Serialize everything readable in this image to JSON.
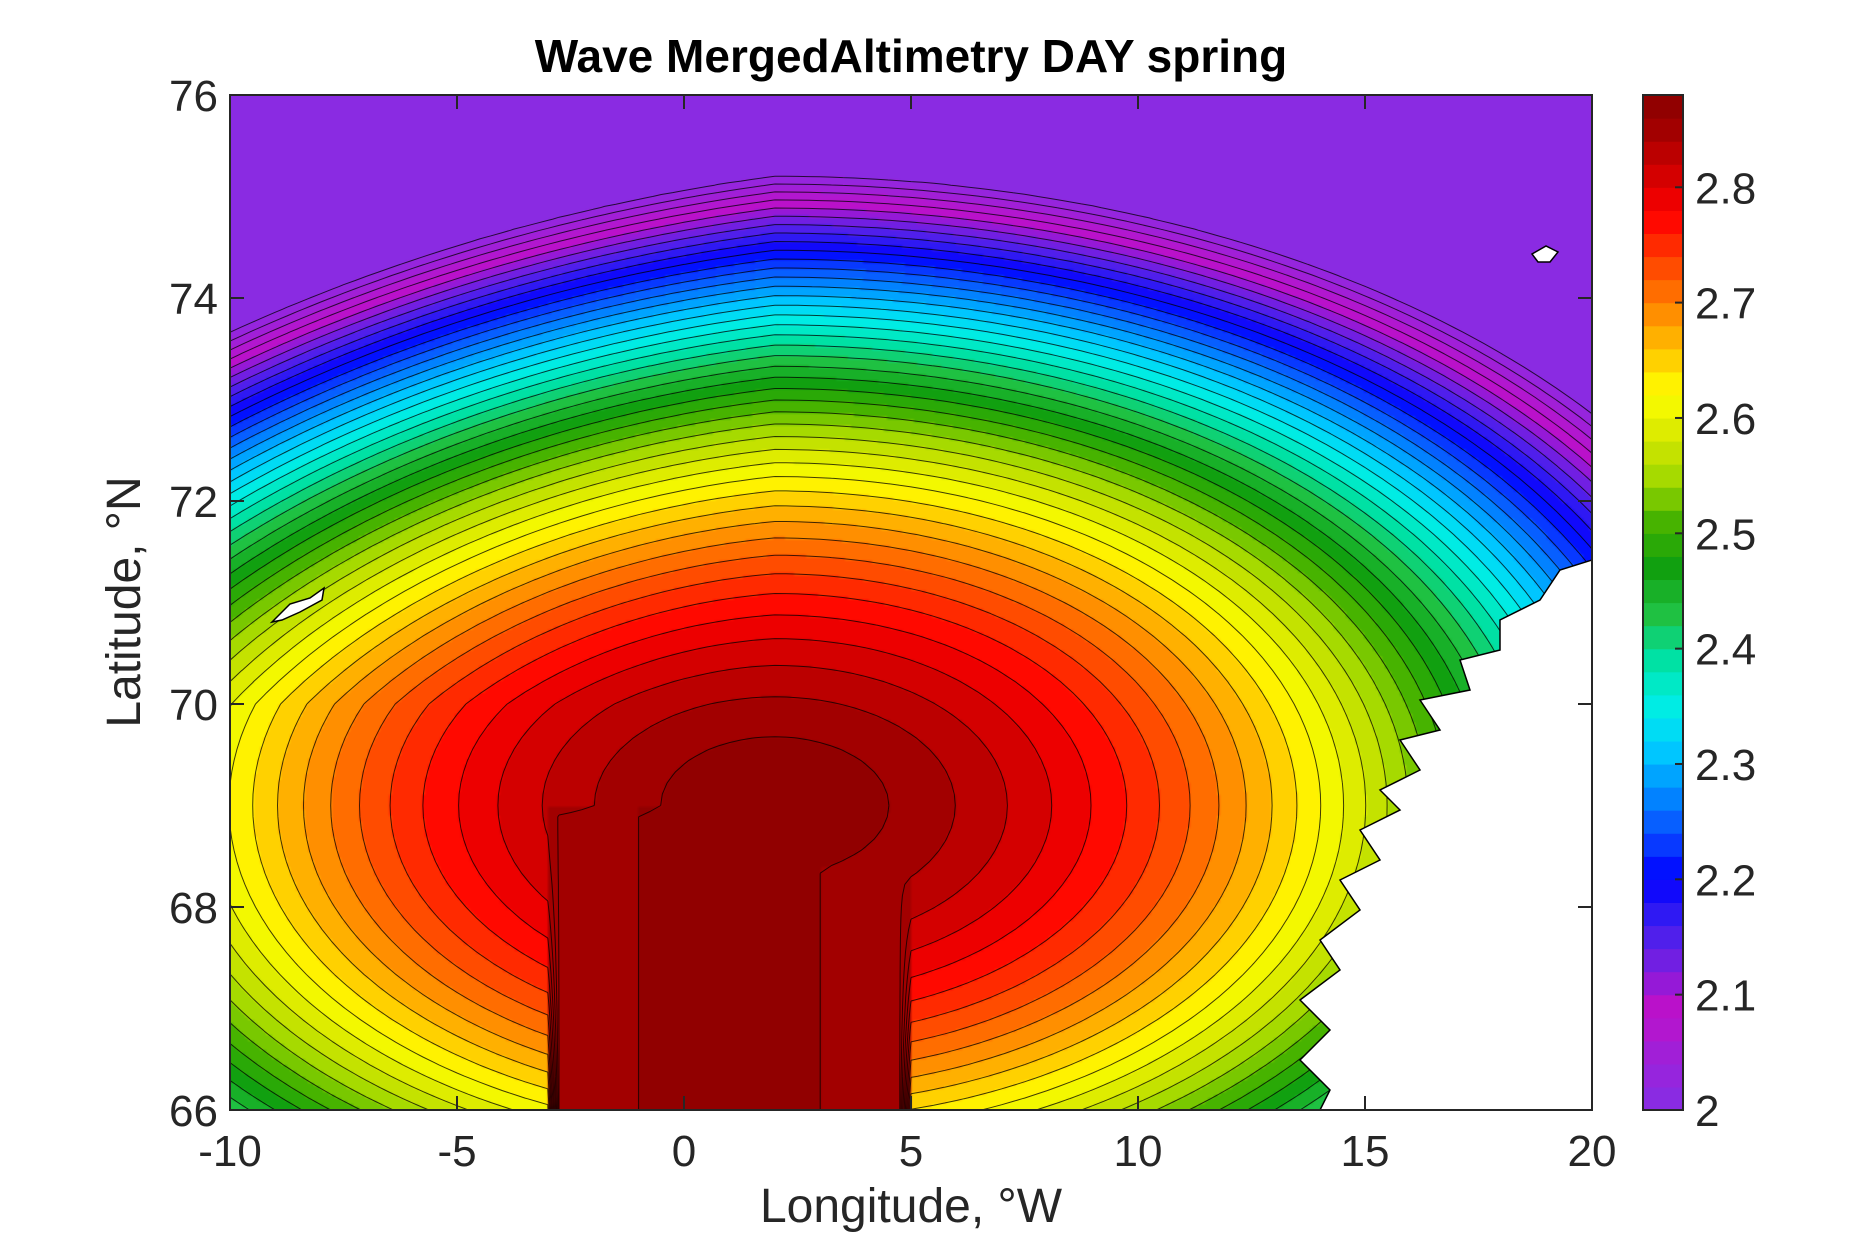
{
  "chart_data": {
    "type": "heatmap",
    "subtype": "filled-contour map",
    "title": "Wave MergedAltimetry DAY spring",
    "xlabel": "Longitude, °W",
    "ylabel": "Latitude, °N",
    "xlim": [
      -10,
      20
    ],
    "ylim": [
      66,
      76
    ],
    "xticks": [
      -10,
      -5,
      0,
      5,
      10,
      15,
      20
    ],
    "yticks": [
      66,
      68,
      70,
      72,
      74,
      76
    ],
    "colorbar": {
      "clim": [
        2.0,
        2.88
      ],
      "ticks": [
        2,
        2.1,
        2.2,
        2.3,
        2.4,
        2.5,
        2.6,
        2.7,
        2.8
      ],
      "colormap": [
        "#8a2be2",
        "#a020d8",
        "#c010c8",
        "#7a1fe0",
        "#3a1ff0",
        "#0000ff",
        "#0a4cff",
        "#0090ff",
        "#00d0ff",
        "#00f0e0",
        "#00e0a0",
        "#20c040",
        "#10a010",
        "#40b000",
        "#a0d800",
        "#d8e800",
        "#ffff00",
        "#ffc000",
        "#ff8000",
        "#ff4000",
        "#ff0000",
        "#d00000",
        "#a00000",
        "#800000"
      ]
    },
    "grid": false,
    "field_peak": {
      "lon": 2.0,
      "lat": 69.0,
      "value": 2.88
    }
  },
  "icons": [
    "landmass-norway-coast",
    "island-jan-mayen",
    "island-bear"
  ]
}
